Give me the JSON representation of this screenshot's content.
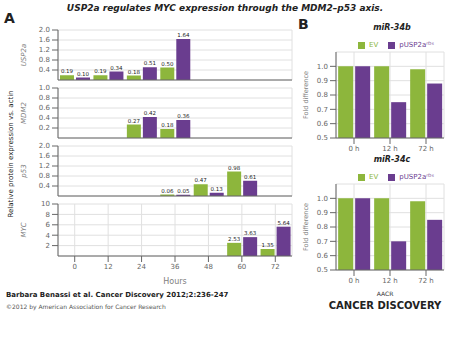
{
  "title": "USP2a regulates MYC expression through the MDM2–p53 axis.",
  "ylabel": "Relative protein expression vs. actin",
  "annotations": [
    "A",
    "B",
    "Barbara Benassi et al. Cancer Discovery 2012;2:236-247",
    "©2012 by American Association for Cancer Research",
    "AACR",
    "CANCER DISCOVERY"
  ],
  "chart_data": [
    {
      "type": "bar",
      "ylabel": "USP2a",
      "categories": [
        "0",
        "12",
        "24",
        "36",
        "48",
        "60",
        "72"
      ],
      "series": [
        {
          "name": "EV",
          "color": "#8db63c",
          "values": [
            0.19,
            0.19,
            0.18,
            0.5,
            null,
            null,
            null
          ],
          "value_labels": [
            "0.19",
            "0.19",
            "0.18",
            "0.50",
            null,
            null,
            null
          ]
        },
        {
          "name": "pUSP2aʳᴰˢ",
          "color": "#6a3d8f",
          "values": [
            0.1,
            0.34,
            0.51,
            1.64,
            null,
            null,
            null
          ],
          "value_labels": [
            "0.10",
            "0.34",
            "0.51",
            "1.64",
            null,
            null,
            null
          ]
        }
      ],
      "ylim": [
        0,
        2.0
      ],
      "yticks": [
        0.4,
        0.8,
        1.2,
        1.6,
        {
          "value": 2.0,
          "label": "2.0"
        }
      ],
      "grid": true,
      "data_labels": true,
      "tick_labels": "y"
    },
    {
      "type": "bar",
      "ylabel": "MDM2",
      "categories": [
        "0",
        "12",
        "24",
        "36",
        "48",
        "60",
        "72"
      ],
      "series": [
        {
          "name": "EV",
          "color": "#8db63c",
          "values": [
            null,
            null,
            0.27,
            0.18,
            null,
            null,
            null
          ],
          "value_labels": [
            null,
            null,
            "0.27",
            "0.18",
            null,
            null,
            null
          ]
        },
        {
          "name": "pUSP2aʳᴰˢ",
          "color": "#6a3d8f",
          "values": [
            null,
            null,
            0.42,
            0.36,
            null,
            null,
            null
          ],
          "value_labels": [
            null,
            null,
            "0.42",
            "0.36",
            null,
            null,
            null
          ]
        }
      ],
      "ylim": [
        0,
        1.0
      ],
      "yticks": [
        0.2,
        0.4,
        0.6,
        0.8,
        {
          "value": 1.0,
          "label": "1.0"
        }
      ],
      "grid": true,
      "data_labels": true,
      "tick_labels": "y"
    },
    {
      "type": "bar",
      "ylabel": "p53",
      "categories": [
        "0",
        "12",
        "24",
        "36",
        "48",
        "60",
        "72"
      ],
      "series": [
        {
          "name": "EV",
          "color": "#8db63c",
          "values": [
            null,
            null,
            null,
            0.06,
            0.47,
            0.98,
            null
          ],
          "value_labels": [
            null,
            null,
            null,
            "0.06",
            "0.47",
            "0.98",
            null
          ]
        },
        {
          "name": "pUSP2aʳᴰˢ",
          "color": "#6a3d8f",
          "values": [
            null,
            null,
            null,
            0.05,
            0.13,
            0.61,
            null
          ],
          "value_labels": [
            null,
            null,
            null,
            "0.05",
            "0.13",
            "0.61",
            null
          ]
        }
      ],
      "ylim": [
        0,
        2.0
      ],
      "yticks": [
        0.4,
        0.8,
        1.2,
        1.6,
        {
          "value": 2.0,
          "label": "2.0"
        }
      ],
      "grid": true,
      "data_labels": true,
      "tick_labels": "y"
    },
    {
      "type": "bar",
      "ylabel": "MYC",
      "xlabel": "Hours",
      "categories": [
        "0",
        "12",
        "24",
        "36",
        "48",
        "60",
        "72"
      ],
      "series": [
        {
          "name": "EV",
          "color": "#8db63c",
          "values": [
            null,
            null,
            null,
            null,
            null,
            2.53,
            1.35
          ],
          "value_labels": [
            null,
            null,
            null,
            null,
            null,
            "2.53",
            "1.35"
          ]
        },
        {
          "name": "pUSP2aʳᴰˢ",
          "color": "#6a3d8f",
          "values": [
            null,
            null,
            null,
            null,
            null,
            3.63,
            5.64
          ],
          "value_labels": [
            null,
            null,
            null,
            null,
            null,
            "3.63",
            "5.64"
          ]
        }
      ],
      "ylim": [
        0,
        10.0
      ],
      "yticks": [
        2.0,
        4.0,
        6.0,
        8.0,
        10.0
      ],
      "grid": true,
      "data_labels": true
    },
    {
      "type": "bar",
      "title": "miR-34b",
      "ylabel": "Fold difference",
      "categories": [
        "0 h",
        "12 h",
        "72 h"
      ],
      "series": [
        {
          "name": "EV",
          "color": "#8db63c",
          "values": [
            1.0,
            1.0,
            0.98
          ]
        },
        {
          "name": "pUSP2aʳᴰˢ",
          "color": "#6a3d8f",
          "values": [
            1.0,
            0.75,
            0.88
          ]
        }
      ],
      "ylim": [
        0.5,
        1.1
      ],
      "yticks": [
        0.5,
        0.6,
        0.7,
        0.8,
        0.9,
        {
          "value": 1.0,
          "label": "1.0"
        }
      ],
      "grid": true,
      "legend": "upper right"
    },
    {
      "type": "bar",
      "title": "miR-34c",
      "ylabel": "Fold difference",
      "categories": [
        "0 h",
        "12 h",
        "72 h"
      ],
      "series": [
        {
          "name": "EV",
          "color": "#8db63c",
          "values": [
            1.0,
            1.0,
            0.98
          ]
        },
        {
          "name": "pUSP2aʳᴰˢ",
          "color": "#6a3d8f",
          "values": [
            1.0,
            0.7,
            0.85
          ]
        }
      ],
      "ylim": [
        0.5,
        1.1
      ],
      "yticks": [
        0.5,
        0.6,
        0.7,
        0.8,
        0.9,
        {
          "value": 1.0,
          "label": "1.0"
        }
      ],
      "grid": true,
      "legend": "upper right"
    }
  ]
}
